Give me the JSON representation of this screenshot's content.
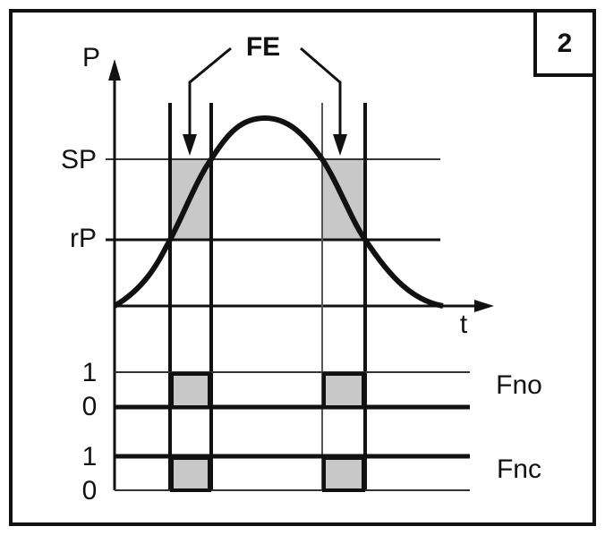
{
  "badge": "2",
  "axis": {
    "y_label": "P",
    "x_label": "t"
  },
  "annotation": "FE",
  "levels": {
    "sp": "SP",
    "rp": "rP"
  },
  "outputs": [
    {
      "name": "Fno",
      "high": "1",
      "low": "0"
    },
    {
      "name": "Fnc",
      "high": "1",
      "low": "0"
    }
  ]
}
